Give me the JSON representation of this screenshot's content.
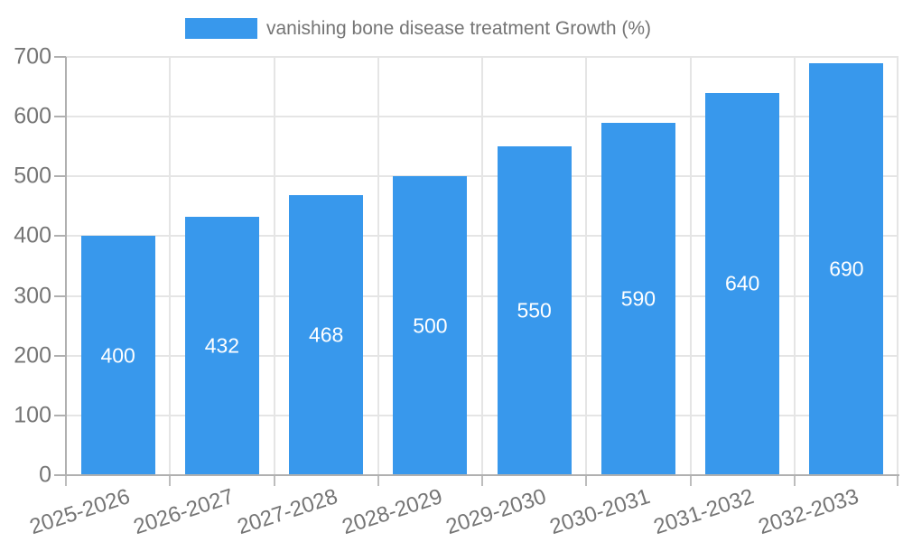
{
  "chart_data": {
    "type": "bar",
    "title": "vanishing bone disease treatment Growth (%)",
    "categories": [
      "2025-2026",
      "2026-2027",
      "2027-2028",
      "2028-2029",
      "2029-2030",
      "2030-2031",
      "2031-2032",
      "2032-2033"
    ],
    "values": [
      400,
      432,
      468,
      500,
      550,
      590,
      640,
      690
    ],
    "xlabel": "",
    "ylabel": "",
    "ylim": [
      0,
      700
    ],
    "ytick_step": 100,
    "ytick_labels": [
      "0",
      "100",
      "200",
      "300",
      "400",
      "500",
      "600",
      "700"
    ],
    "grid": true,
    "legend_position": "top",
    "colors": {
      "bar": "#3898ec",
      "bar_label": "#ffffff",
      "axis_text": "#757575",
      "grid": "#e5e5e5",
      "axis_line": "#b0b0b0",
      "tick": "#bdbdbd",
      "background": "#ffffff"
    }
  }
}
